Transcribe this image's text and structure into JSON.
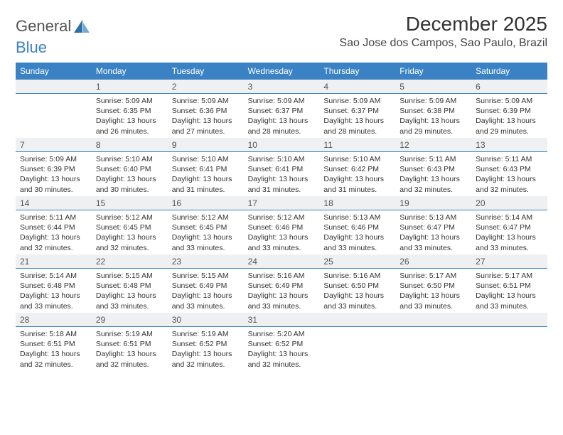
{
  "logo": {
    "text1": "General",
    "text2": "Blue"
  },
  "title": "December 2025",
  "subtitle": "Sao Jose dos Campos, Sao Paulo, Brazil",
  "colors": {
    "accent": "#3b82c4",
    "header_bg": "#eef0f1",
    "text": "#333333",
    "background": "#ffffff"
  },
  "days_of_week": [
    "Sunday",
    "Monday",
    "Tuesday",
    "Wednesday",
    "Thursday",
    "Friday",
    "Saturday"
  ],
  "start_offset": 1,
  "days": [
    {
      "n": 1,
      "sr": "5:09 AM",
      "ss": "6:35 PM",
      "dl": "13 hours and 26 minutes."
    },
    {
      "n": 2,
      "sr": "5:09 AM",
      "ss": "6:36 PM",
      "dl": "13 hours and 27 minutes."
    },
    {
      "n": 3,
      "sr": "5:09 AM",
      "ss": "6:37 PM",
      "dl": "13 hours and 28 minutes."
    },
    {
      "n": 4,
      "sr": "5:09 AM",
      "ss": "6:37 PM",
      "dl": "13 hours and 28 minutes."
    },
    {
      "n": 5,
      "sr": "5:09 AM",
      "ss": "6:38 PM",
      "dl": "13 hours and 29 minutes."
    },
    {
      "n": 6,
      "sr": "5:09 AM",
      "ss": "6:39 PM",
      "dl": "13 hours and 29 minutes."
    },
    {
      "n": 7,
      "sr": "5:09 AM",
      "ss": "6:39 PM",
      "dl": "13 hours and 30 minutes."
    },
    {
      "n": 8,
      "sr": "5:10 AM",
      "ss": "6:40 PM",
      "dl": "13 hours and 30 minutes."
    },
    {
      "n": 9,
      "sr": "5:10 AM",
      "ss": "6:41 PM",
      "dl": "13 hours and 31 minutes."
    },
    {
      "n": 10,
      "sr": "5:10 AM",
      "ss": "6:41 PM",
      "dl": "13 hours and 31 minutes."
    },
    {
      "n": 11,
      "sr": "5:10 AM",
      "ss": "6:42 PM",
      "dl": "13 hours and 31 minutes."
    },
    {
      "n": 12,
      "sr": "5:11 AM",
      "ss": "6:43 PM",
      "dl": "13 hours and 32 minutes."
    },
    {
      "n": 13,
      "sr": "5:11 AM",
      "ss": "6:43 PM",
      "dl": "13 hours and 32 minutes."
    },
    {
      "n": 14,
      "sr": "5:11 AM",
      "ss": "6:44 PM",
      "dl": "13 hours and 32 minutes."
    },
    {
      "n": 15,
      "sr": "5:12 AM",
      "ss": "6:45 PM",
      "dl": "13 hours and 32 minutes."
    },
    {
      "n": 16,
      "sr": "5:12 AM",
      "ss": "6:45 PM",
      "dl": "13 hours and 33 minutes."
    },
    {
      "n": 17,
      "sr": "5:12 AM",
      "ss": "6:46 PM",
      "dl": "13 hours and 33 minutes."
    },
    {
      "n": 18,
      "sr": "5:13 AM",
      "ss": "6:46 PM",
      "dl": "13 hours and 33 minutes."
    },
    {
      "n": 19,
      "sr": "5:13 AM",
      "ss": "6:47 PM",
      "dl": "13 hours and 33 minutes."
    },
    {
      "n": 20,
      "sr": "5:14 AM",
      "ss": "6:47 PM",
      "dl": "13 hours and 33 minutes."
    },
    {
      "n": 21,
      "sr": "5:14 AM",
      "ss": "6:48 PM",
      "dl": "13 hours and 33 minutes."
    },
    {
      "n": 22,
      "sr": "5:15 AM",
      "ss": "6:48 PM",
      "dl": "13 hours and 33 minutes."
    },
    {
      "n": 23,
      "sr": "5:15 AM",
      "ss": "6:49 PM",
      "dl": "13 hours and 33 minutes."
    },
    {
      "n": 24,
      "sr": "5:16 AM",
      "ss": "6:49 PM",
      "dl": "13 hours and 33 minutes."
    },
    {
      "n": 25,
      "sr": "5:16 AM",
      "ss": "6:50 PM",
      "dl": "13 hours and 33 minutes."
    },
    {
      "n": 26,
      "sr": "5:17 AM",
      "ss": "6:50 PM",
      "dl": "13 hours and 33 minutes."
    },
    {
      "n": 27,
      "sr": "5:17 AM",
      "ss": "6:51 PM",
      "dl": "13 hours and 33 minutes."
    },
    {
      "n": 28,
      "sr": "5:18 AM",
      "ss": "6:51 PM",
      "dl": "13 hours and 32 minutes."
    },
    {
      "n": 29,
      "sr": "5:19 AM",
      "ss": "6:51 PM",
      "dl": "13 hours and 32 minutes."
    },
    {
      "n": 30,
      "sr": "5:19 AM",
      "ss": "6:52 PM",
      "dl": "13 hours and 32 minutes."
    },
    {
      "n": 31,
      "sr": "5:20 AM",
      "ss": "6:52 PM",
      "dl": "13 hours and 32 minutes."
    }
  ],
  "labels": {
    "sunrise": "Sunrise:",
    "sunset": "Sunset:",
    "daylight": "Daylight:"
  }
}
